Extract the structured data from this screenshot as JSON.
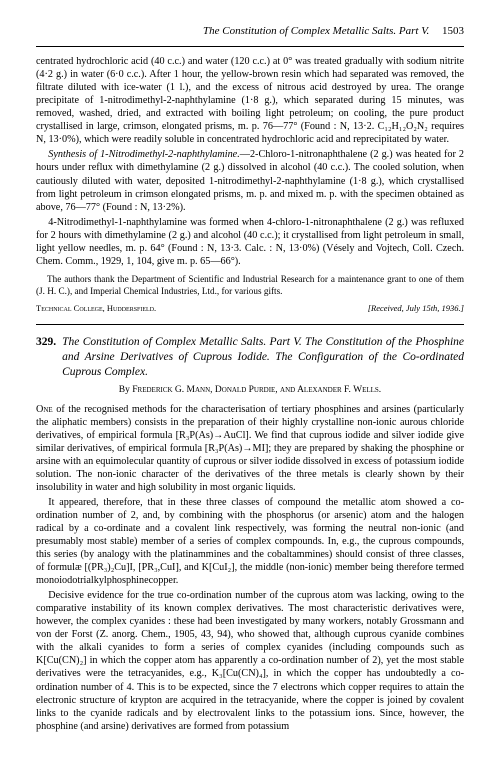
{
  "running_head": {
    "title": "The Constitution of Complex Metallic Salts. Part V.",
    "page": "1503"
  },
  "topblock": {
    "p1": "centrated hydrochloric acid (40 c.c.) and water (120 c.c.) at 0° was treated gradually with sodium nitrite (4·2 g.) in water (6·0 c.c.). After 1 hour, the yellow-brown resin which had separated was removed, the filtrate diluted with ice-water (1 l.), and the excess of nitrous acid destroyed by urea. The orange precipitate of 1-nitrodimethyl-2-naphthylamine (1·8 g.), which separated during 15 minutes, was removed, washed, dried, and extracted with boiling light petroleum; on cooling, the pure product crystallised in large, crimson, elongated prisms, m. p. 76—77° (Found : N, 13·2. C₁₂H₁₂O₂N₂ requires N, 13·0%), which were readily soluble in concentrated hydrochloric acid and reprecipitated by water.",
    "p2_lead": "Synthesis of 1-Nitrodimethyl-2-naphthylamine.",
    "p2_rest": "—2-Chloro-1-nitronaphthalene (2 g.) was heated for 2 hours under reflux with dimethylamine (2 g.) dissolved in alcohol (40 c.c.). The cooled solution, when cautiously diluted with water, deposited 1-nitrodimethyl-2-naphthylamine (1·8 g.), which crystallised from light petroleum in crimson elongated prisms, m. p. and mixed m. p. with the specimen obtained as above, 76—77° (Found : N, 13·2%).",
    "p3": "4-Nitrodimethyl-1-naphthylamine was formed when 4-chloro-1-nitronaphthalene (2 g.) was refluxed for 2 hours with dimethylamine (2 g.) and alcohol (40 c.c.); it crystallised from light petroleum in small, light yellow needles, m. p. 64° (Found : N, 13·3. Calc. : N, 13·0%) (Vésely and Vojtech, Coll. Czech. Chem. Comm., 1929, 1, 104, give m. p. 65—66°).",
    "ack": "The authors thank the Department of Scientific and Industrial Research for a maintenance grant to one of them (J. H. C.), and Imperial Chemical Industries, Ltd., for various gifts.",
    "affiliation": "Technical College, Huddersfield.",
    "received": "[Received, July 15th, 1936.]"
  },
  "entry": {
    "number": "329.",
    "title": "The Constitution of Complex Metallic Salts. Part V. The Constitution of the Phosphine and Arsine Derivatives of Cuprous Iodide. The Configuration of the Co-ordinated Cuprous Complex.",
    "authors_by": "By ",
    "authors": "Frederick G. Mann, Donald Purdie, and Alexander F. Wells.",
    "p1_lead": "One",
    "p1": " of the recognised methods for the characterisation of tertiary phosphines and arsines (particularly the aliphatic members) consists in the preparation of their highly crystalline non-ionic aurous chloride derivatives, of empirical formula [R₃P(As)→AuCl]. We find that cuprous iodide and silver iodide give similar derivatives, of empirical formula [R₃P(As)→MI]; they are prepared by shaking the phosphine or arsine with an equimolecular quantity of cuprous or silver iodide dissolved in excess of potassium iodide solution. The non-ionic character of the derivatives of the three metals is clearly shown by their insolubility in water and high solubility in most organic liquids.",
    "p2": "It appeared, therefore, that in these three classes of compound the metallic atom showed a co-ordination number of 2, and, by combining with the phosphorus (or arsenic) atom and the halogen radical by a co-ordinate and a covalent link respectively, was forming the neutral non-ionic (and presumably most stable) member of a series of complex compounds. In, e.g., the cuprous compounds, this series (by analogy with the platinammines and the cobaltammines) should consist of three classes, of formulæ [(PR₃)₂Cu]I, [PR₃,CuI], and K[CuI₂], the middle (non-ionic) member being therefore termed monoiodotrialkylphosphinecopper.",
    "p3": "Decisive evidence for the true co-ordination number of the cuprous atom was lacking, owing to the comparative instability of its known complex derivatives. The most characteristic derivatives were, however, the complex cyanides : these had been investigated by many workers, notably Grossmann and von der Forst (Z. anorg. Chem., 1905, 43, 94), who showed that, although cuprous cyanide combines with the alkali cyanides to form a series of complex cyanides (including compounds such as K[Cu(CN)₂] in which the copper atom has apparently a co-ordination number of 2), yet the most stable derivatives were the tetracyanides, e.g., K₃[Cu(CN)₄], in which the copper has undoubtedly a co-ordination number of 4. This is to be expected, since the 7 electrons which copper requires to attain the electronic structure of krypton are acquired in the tetracyanide, where the copper is joined by covalent links to the cyanide radicals and by electrovalent links to the potassium ions. Since, however, the phosphine (and arsine) derivatives are formed from potassium"
  }
}
